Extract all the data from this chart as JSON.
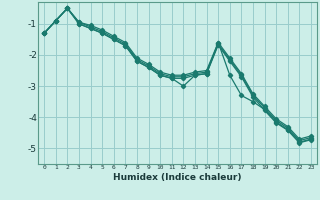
{
  "xlabel": "Humidex (Indice chaleur)",
  "bg_color": "#cceee8",
  "grid_color": "#99cccc",
  "line_color": "#1a7a6e",
  "xlim": [
    -0.5,
    23.5
  ],
  "ylim": [
    -5.5,
    -0.3
  ],
  "xticks": [
    0,
    1,
    2,
    3,
    4,
    5,
    6,
    7,
    8,
    9,
    10,
    11,
    12,
    13,
    14,
    15,
    16,
    17,
    18,
    19,
    20,
    21,
    22,
    23
  ],
  "yticks": [
    -5,
    -4,
    -3,
    -2,
    -1
  ],
  "series1_x": [
    0,
    1,
    2,
    3,
    4,
    5,
    6,
    7,
    8,
    9,
    10,
    11,
    12,
    13,
    14,
    15,
    16,
    17,
    18,
    19,
    20,
    21,
    22,
    23
  ],
  "series1_y": [
    -1.3,
    -0.9,
    -0.5,
    -0.95,
    -1.05,
    -1.2,
    -1.4,
    -1.6,
    -2.1,
    -2.3,
    -2.55,
    -2.65,
    -2.65,
    -2.55,
    -2.5,
    -1.6,
    -2.1,
    -2.6,
    -3.25,
    -3.65,
    -4.05,
    -4.3,
    -4.7,
    -4.6
  ],
  "series2_x": [
    0,
    1,
    2,
    3,
    4,
    5,
    6,
    7,
    8,
    9,
    10,
    11,
    12,
    13,
    14,
    15,
    16,
    17,
    18,
    19,
    20,
    21,
    22,
    23
  ],
  "series2_y": [
    -1.3,
    -0.9,
    -0.5,
    -0.95,
    -1.1,
    -1.25,
    -1.45,
    -1.65,
    -2.15,
    -2.35,
    -2.6,
    -2.7,
    -2.7,
    -2.6,
    -2.55,
    -1.65,
    -2.15,
    -2.65,
    -3.3,
    -3.7,
    -4.1,
    -4.35,
    -4.75,
    -4.65
  ],
  "series3_x": [
    0,
    1,
    2,
    3,
    4,
    5,
    6,
    7,
    8,
    9,
    10,
    11,
    12,
    13,
    14,
    15,
    16,
    17,
    18,
    19,
    20,
    21,
    22,
    23
  ],
  "series3_y": [
    -1.3,
    -0.9,
    -0.5,
    -1.0,
    -1.15,
    -1.3,
    -1.5,
    -1.7,
    -2.2,
    -2.4,
    -2.65,
    -2.75,
    -2.75,
    -2.65,
    -2.6,
    -1.68,
    -2.2,
    -2.7,
    -3.35,
    -3.78,
    -4.18,
    -4.42,
    -4.82,
    -4.72
  ],
  "series4_x": [
    0,
    1,
    2,
    3,
    4,
    5,
    6,
    7,
    8,
    9,
    10,
    11,
    12,
    13,
    14,
    15,
    16,
    17,
    18,
    19,
    20,
    21,
    22,
    23
  ],
  "series4_y": [
    -1.3,
    -0.9,
    -0.5,
    -1.0,
    -1.15,
    -1.3,
    -1.5,
    -1.7,
    -2.2,
    -2.4,
    -2.65,
    -2.75,
    -3.0,
    -2.65,
    -2.6,
    -1.6,
    -2.65,
    -3.3,
    -3.5,
    -3.75,
    -4.15,
    -4.4,
    -4.8,
    -4.7
  ]
}
